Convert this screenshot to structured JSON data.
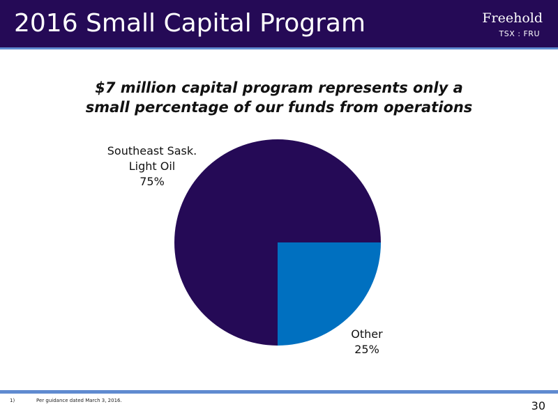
{
  "slide": {
    "title": "2016 Small Capital Program",
    "brand": "Freehold",
    "ticker": "TSX : FRU",
    "subtitle_line1": "$7 million capital program represents only a",
    "subtitle_line2": "small percentage of our funds from operations",
    "footnote_number": "1)",
    "footnote_text": "Per guidance dated March 3, 2016.",
    "page_number": "30"
  },
  "colors": {
    "header": "#250a56",
    "accent_rule": "#5f8ad0",
    "slice_main": "#250a56",
    "slice_other": "#0070c0"
  },
  "chart_data": {
    "type": "pie",
    "title": "",
    "slices": [
      {
        "label_lines": [
          "Southeast Sask.",
          "Light Oil",
          "75%"
        ],
        "value": 75,
        "color": "#250a56"
      },
      {
        "label_lines": [
          "Other",
          "25%"
        ],
        "value": 25,
        "color": "#0070c0"
      }
    ]
  }
}
